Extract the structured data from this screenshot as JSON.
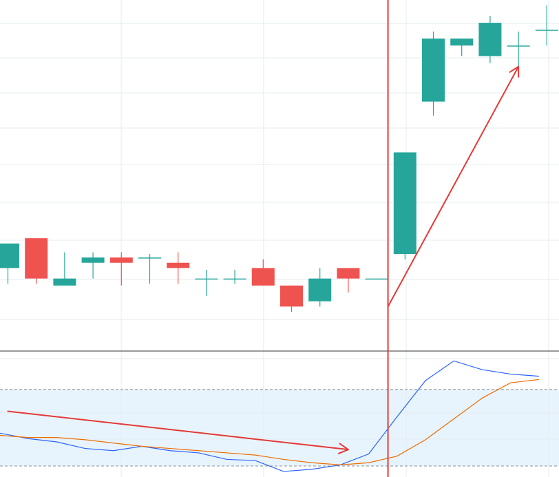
{
  "chart_data": [
    {
      "type": "candlestick",
      "title": "",
      "xlabel": "",
      "ylabel": "",
      "ylim": [
        0,
        100
      ],
      "grid": true,
      "colors": {
        "up": "#26a69a",
        "down": "#ef5350",
        "grid": "#e6ebf0",
        "separator": "#333333",
        "marker_line": "#e53935",
        "annotation": "#e53935"
      },
      "candles": [
        {
          "open": 23.5,
          "high": 30.5,
          "low": 19,
          "close": 30.5
        },
        {
          "open": 32,
          "high": 32,
          "low": 19,
          "close": 20.5
        },
        {
          "open": 18.5,
          "high": 28,
          "low": 18.5,
          "close": 20.5
        },
        {
          "open": 25,
          "high": 28,
          "low": 20.5,
          "close": 26.5
        },
        {
          "open": 26.5,
          "high": 28,
          "low": 18.5,
          "close": 25
        },
        {
          "open": 26.5,
          "high": 27.5,
          "low": 19,
          "close": 26.5
        },
        {
          "open": 25,
          "high": 28,
          "low": 19,
          "close": 23.5
        },
        {
          "open": 20.5,
          "high": 23,
          "low": 15.5,
          "close": 20.5
        },
        {
          "open": 20.5,
          "high": 23,
          "low": 19,
          "close": 20.5
        },
        {
          "open": 23.5,
          "high": 26,
          "low": 18.5,
          "close": 18.5
        },
        {
          "open": 18.5,
          "high": 18.5,
          "low": 11,
          "close": 12.5
        },
        {
          "open": 14,
          "high": 23.5,
          "low": 12.5,
          "close": 20.5
        },
        {
          "open": 23.5,
          "high": 23.5,
          "low": 16.5,
          "close": 20.5
        },
        {
          "open": 20.5,
          "high": 20.5,
          "low": 20.5,
          "close": 20.5
        },
        {
          "open": 27.5,
          "high": 56.5,
          "low": 26,
          "close": 56.5
        },
        {
          "open": 71,
          "high": 91,
          "low": 67,
          "close": 89
        },
        {
          "open": 87,
          "high": 89,
          "low": 84,
          "close": 89
        },
        {
          "open": 84,
          "high": 95.5,
          "low": 82,
          "close": 93.5
        },
        {
          "open": 87,
          "high": 91,
          "low": 79,
          "close": 87
        },
        {
          "open": 91.5,
          "high": 98.5,
          "low": 87,
          "close": 91.5
        }
      ],
      "event_index": 13.4,
      "annotations": [
        {
          "type": "arrow",
          "from": [
            13.4,
            12.5
          ],
          "to": [
            18,
            81
          ]
        }
      ]
    },
    {
      "type": "line",
      "title": "",
      "xlabel": "",
      "ylabel": "",
      "ylim": [
        0,
        100
      ],
      "band": [
        0,
        70
      ],
      "grid": true,
      "series": [
        {
          "color": "#2962ff",
          "values": [
            30,
            25,
            22,
            16,
            14,
            18,
            14,
            12,
            6,
            5,
            -5,
            -3,
            1,
            11,
            45,
            78,
            96,
            88,
            84,
            82
          ]
        },
        {
          "color": "#ef6c00",
          "values": [
            28,
            26,
            26,
            24,
            21,
            18,
            16,
            14,
            12,
            10,
            6,
            3,
            1,
            3,
            9,
            24,
            43,
            62,
            76,
            79
          ]
        }
      ],
      "annotations": [
        {
          "type": "arrow",
          "from": [
            0,
            50
          ],
          "to": [
            12,
            15
          ]
        }
      ]
    }
  ]
}
